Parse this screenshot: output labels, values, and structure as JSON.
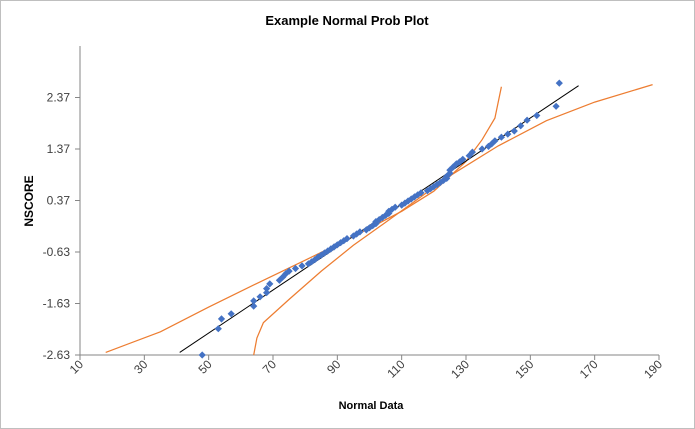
{
  "chart_data": {
    "type": "scatter",
    "title": "Example Normal Prob Plot",
    "xlabel": "Normal Data",
    "ylabel": "NSCORE",
    "xlim": [
      10,
      190
    ],
    "ylim": [
      -2.63,
      3.37
    ],
    "x_ticks": [
      10,
      30,
      50,
      70,
      90,
      110,
      130,
      150,
      170,
      190
    ],
    "y_ticks": [
      -2.63,
      -1.63,
      -0.63,
      0.37,
      1.37,
      2.37
    ],
    "y_tick_labels": [
      "-2.63",
      "-1.63",
      "-0.63",
      "0.37",
      "1.37",
      "2.37"
    ],
    "grid": false,
    "legend": "none",
    "colors": {
      "points": "#4472C4",
      "fit_line": "#000000",
      "bounds": "#ED7D31"
    },
    "series": [
      {
        "kind": "points",
        "marker": "diamond",
        "points": [
          [
            48,
            -2.63
          ],
          [
            53,
            -2.12
          ],
          [
            54,
            -1.93
          ],
          [
            57,
            -1.83
          ],
          [
            64,
            -1.68
          ],
          [
            64,
            -1.58
          ],
          [
            66,
            -1.5
          ],
          [
            68,
            -1.42
          ],
          [
            68,
            -1.34
          ],
          [
            69,
            -1.25
          ],
          [
            72,
            -1.18
          ],
          [
            73,
            -1.12
          ],
          [
            74,
            -1.05
          ],
          [
            75,
            -1.0
          ],
          [
            77,
            -0.95
          ],
          [
            79,
            -0.9
          ],
          [
            81,
            -0.86
          ],
          [
            82,
            -0.82
          ],
          [
            83,
            -0.78
          ],
          [
            84,
            -0.73
          ],
          [
            85,
            -0.69
          ],
          [
            86,
            -0.65
          ],
          [
            87,
            -0.61
          ],
          [
            88,
            -0.57
          ],
          [
            89,
            -0.53
          ],
          [
            90,
            -0.49
          ],
          [
            91,
            -0.45
          ],
          [
            92,
            -0.41
          ],
          [
            93,
            -0.37
          ],
          [
            95,
            -0.32
          ],
          [
            96,
            -0.28
          ],
          [
            97,
            -0.24
          ],
          [
            99,
            -0.2
          ],
          [
            100,
            -0.16
          ],
          [
            101,
            -0.12
          ],
          [
            102,
            -0.08
          ],
          [
            102,
            -0.04
          ],
          [
            103,
            0.0
          ],
          [
            104,
            0.04
          ],
          [
            105,
            0.08
          ],
          [
            106,
            0.12
          ],
          [
            106,
            0.16
          ],
          [
            107,
            0.2
          ],
          [
            108,
            0.24
          ],
          [
            110,
            0.28
          ],
          [
            111,
            0.32
          ],
          [
            112,
            0.36
          ],
          [
            113,
            0.4
          ],
          [
            114,
            0.44
          ],
          [
            115,
            0.48
          ],
          [
            116,
            0.52
          ],
          [
            118,
            0.56
          ],
          [
            119,
            0.6
          ],
          [
            120,
            0.64
          ],
          [
            121,
            0.68
          ],
          [
            122,
            0.72
          ],
          [
            123,
            0.76
          ],
          [
            124,
            0.8
          ],
          [
            124,
            0.84
          ],
          [
            125,
            0.9
          ],
          [
            125,
            0.96
          ],
          [
            126,
            1.02
          ],
          [
            127,
            1.08
          ],
          [
            128,
            1.12
          ],
          [
            129,
            1.17
          ],
          [
            131,
            1.24
          ],
          [
            132,
            1.31
          ],
          [
            135,
            1.37
          ],
          [
            137,
            1.42
          ],
          [
            138,
            1.47
          ],
          [
            139,
            1.53
          ],
          [
            141,
            1.6
          ],
          [
            143,
            1.66
          ],
          [
            145,
            1.72
          ],
          [
            147,
            1.82
          ],
          [
            149,
            1.93
          ],
          [
            152,
            2.02
          ],
          [
            158,
            2.2
          ],
          [
            159,
            2.65
          ]
        ]
      },
      {
        "kind": "fit_line",
        "points": [
          [
            41,
            -2.58
          ],
          [
            165,
            2.6
          ]
        ]
      },
      {
        "kind": "upper_bound",
        "points": [
          [
            18,
            -2.58
          ],
          [
            35,
            -2.18
          ],
          [
            50,
            -1.7
          ],
          [
            65,
            -1.24
          ],
          [
            80,
            -0.79
          ],
          [
            95,
            -0.33
          ],
          [
            110,
            0.16
          ],
          [
            120,
            0.55
          ],
          [
            130,
            1.13
          ],
          [
            135,
            1.55
          ],
          [
            139,
            1.97
          ],
          [
            141,
            2.58
          ]
        ]
      },
      {
        "kind": "lower_bound",
        "points": [
          [
            64,
            -2.63
          ],
          [
            65,
            -2.3
          ],
          [
            67,
            -2.0
          ],
          [
            75,
            -1.55
          ],
          [
            85,
            -1.0
          ],
          [
            95,
            -0.5
          ],
          [
            110,
            0.17
          ],
          [
            125,
            0.85
          ],
          [
            140,
            1.43
          ],
          [
            155,
            1.92
          ],
          [
            170,
            2.28
          ],
          [
            188,
            2.62
          ]
        ]
      }
    ]
  }
}
